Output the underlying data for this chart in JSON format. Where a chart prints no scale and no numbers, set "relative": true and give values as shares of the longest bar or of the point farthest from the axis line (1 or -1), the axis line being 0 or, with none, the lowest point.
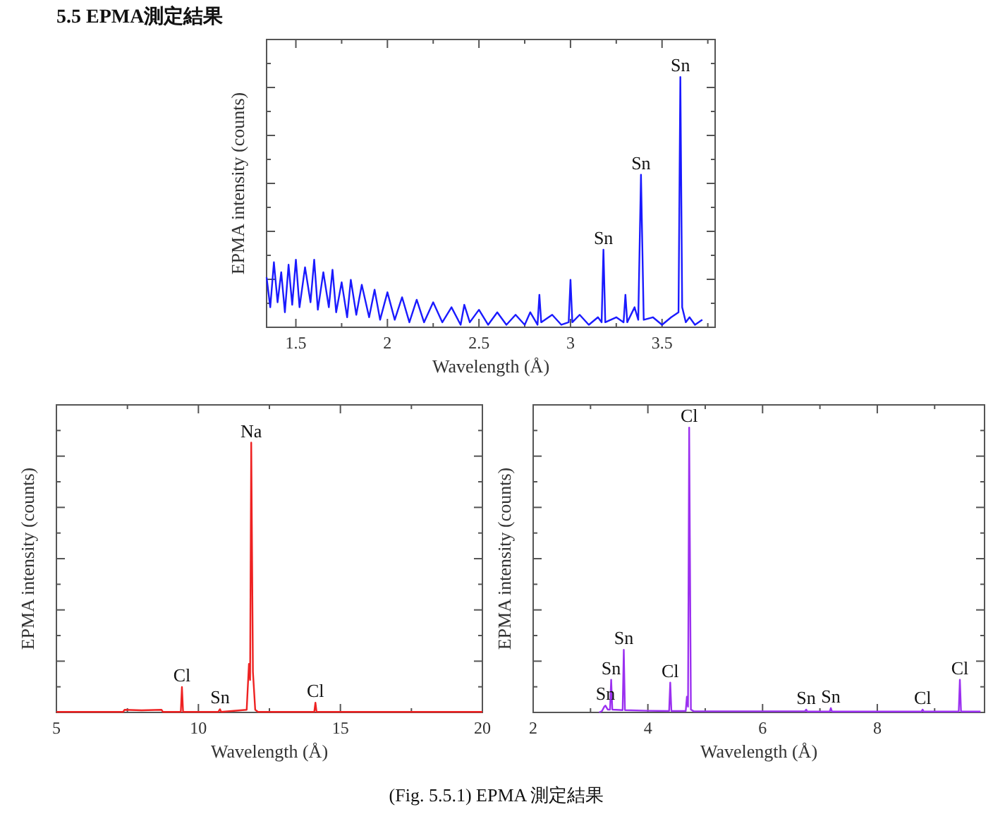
{
  "chart_data": [
    {
      "type": "line",
      "relative": true,
      "xlabel": "Wavelength (Å)",
      "ylabel": "EPMA intensity (counts)",
      "color": "#1a1aff",
      "xlim": [
        1.34,
        3.79
      ],
      "xticks": [
        1.5,
        2,
        2.5,
        3,
        3.5
      ],
      "x": [
        1.34,
        1.36,
        1.38,
        1.4,
        1.42,
        1.44,
        1.46,
        1.48,
        1.5,
        1.52,
        1.55,
        1.58,
        1.6,
        1.62,
        1.65,
        1.68,
        1.7,
        1.72,
        1.75,
        1.78,
        1.8,
        1.83,
        1.86,
        1.9,
        1.93,
        1.96,
        2.0,
        2.04,
        2.08,
        2.12,
        2.16,
        2.2,
        2.25,
        2.3,
        2.35,
        2.4,
        2.42,
        2.45,
        2.5,
        2.55,
        2.6,
        2.65,
        2.7,
        2.75,
        2.78,
        2.82,
        2.83,
        2.84,
        2.9,
        2.95,
        2.99,
        3.0,
        3.01,
        3.05,
        3.1,
        3.15,
        3.17,
        3.18,
        3.19,
        3.25,
        3.29,
        3.3,
        3.31,
        3.35,
        3.37,
        3.385,
        3.4,
        3.45,
        3.5,
        3.55,
        3.59,
        3.6,
        3.61,
        3.63,
        3.65,
        3.68,
        3.72
      ],
      "values": [
        0.2,
        0.08,
        0.26,
        0.1,
        0.22,
        0.06,
        0.25,
        0.09,
        0.27,
        0.08,
        0.24,
        0.1,
        0.27,
        0.07,
        0.22,
        0.08,
        0.23,
        0.06,
        0.18,
        0.04,
        0.19,
        0.05,
        0.17,
        0.04,
        0.15,
        0.03,
        0.14,
        0.03,
        0.12,
        0.02,
        0.11,
        0.02,
        0.1,
        0.02,
        0.08,
        0.01,
        0.09,
        0.02,
        0.07,
        0.01,
        0.06,
        0.01,
        0.05,
        0.01,
        0.06,
        0.01,
        0.13,
        0.02,
        0.05,
        0.01,
        0.02,
        0.19,
        0.02,
        0.05,
        0.01,
        0.04,
        0.02,
        0.31,
        0.02,
        0.04,
        0.02,
        0.13,
        0.02,
        0.08,
        0.03,
        0.61,
        0.03,
        0.04,
        0.01,
        0.04,
        0.06,
        1.0,
        0.08,
        0.02,
        0.04,
        0.01,
        0.03
      ],
      "annotations": [
        {
          "text": "Sn",
          "x": 3.18,
          "y": 0.31
        },
        {
          "text": "Sn",
          "x": 3.385,
          "y": 0.61
        },
        {
          "text": "Sn",
          "x": 3.6,
          "y": 1.0
        }
      ]
    },
    {
      "type": "line",
      "relative": true,
      "xlabel": "Wavelength (Å)",
      "ylabel": "EPMA intensity (counts)",
      "color": "#ee2222",
      "xlim": [
        5,
        20
      ],
      "xticks": [
        5,
        10,
        15,
        20
      ],
      "x": [
        5,
        7.35,
        7.4,
        8.0,
        8.7,
        8.75,
        9.38,
        9.42,
        9.46,
        10.7,
        10.76,
        10.8,
        11.7,
        11.78,
        11.82,
        11.86,
        11.92,
        12.0,
        12.1,
        14.08,
        14.12,
        14.16,
        20
      ],
      "values": [
        0.002,
        0.002,
        0.01,
        0.008,
        0.01,
        0.002,
        0.002,
        0.094,
        0.002,
        0.002,
        0.012,
        0.002,
        0.01,
        0.18,
        0.12,
        1.0,
        0.15,
        0.01,
        0.002,
        0.002,
        0.036,
        0.002,
        0.002
      ],
      "annotations": [
        {
          "text": "Cl",
          "x": 9.42,
          "y": 0.094
        },
        {
          "text": "Sn",
          "x": 10.76,
          "y": 0.012
        },
        {
          "text": "Na",
          "x": 11.86,
          "y": 1.0
        },
        {
          "text": "Cl",
          "x": 14.12,
          "y": 0.036
        }
      ]
    },
    {
      "type": "line",
      "relative": true,
      "xlabel": "Wavelength (Å)",
      "ylabel": "EPMA intensity (counts)",
      "color": "#9b30f0",
      "xlim": [
        2,
        9.87
      ],
      "xticks": [
        2,
        4,
        6,
        8
      ],
      "x": [
        3.15,
        3.2,
        3.24,
        3.26,
        3.3,
        3.34,
        3.36,
        3.38,
        3.56,
        3.58,
        3.6,
        4.0,
        4.37,
        4.39,
        4.41,
        4.66,
        4.68,
        4.7,
        4.72,
        4.75,
        4.8,
        6.74,
        6.76,
        6.78,
        7.17,
        7.19,
        7.21,
        8.77,
        8.79,
        8.81,
        9.42,
        9.44,
        9.46,
        9.8
      ],
      "values": [
        0,
        0.005,
        0.02,
        0.024,
        0.01,
        0.01,
        0.115,
        0.01,
        0.008,
        0.22,
        0.008,
        0.006,
        0.005,
        0.105,
        0.005,
        0.005,
        0.055,
        0.02,
        1.0,
        0.01,
        0.004,
        0.004,
        0.01,
        0.003,
        0.003,
        0.015,
        0.003,
        0.003,
        0.01,
        0.003,
        0.003,
        0.115,
        0.003,
        0.003
      ],
      "annotations": [
        {
          "text": "Sn",
          "x": 3.26,
          "y": 0.024
        },
        {
          "text": "Sn",
          "x": 3.36,
          "y": 0.115
        },
        {
          "text": "Sn",
          "x": 3.58,
          "y": 0.22
        },
        {
          "text": "Cl",
          "x": 4.39,
          "y": 0.105
        },
        {
          "text": "Cl",
          "x": 4.72,
          "y": 1.0
        },
        {
          "text": "Sn",
          "x": 6.76,
          "y": 0.01
        },
        {
          "text": "Sn",
          "x": 7.19,
          "y": 0.015
        },
        {
          "text": "Cl",
          "x": 8.79,
          "y": 0.01
        },
        {
          "text": "Cl",
          "x": 9.44,
          "y": 0.115
        }
      ]
    },
    {
      "type": "other",
      "title": "5.5 EPMA測定結果",
      "annotations": [
        "(Fig. 5.5.1) EPMA 測定結果"
      ]
    }
  ]
}
